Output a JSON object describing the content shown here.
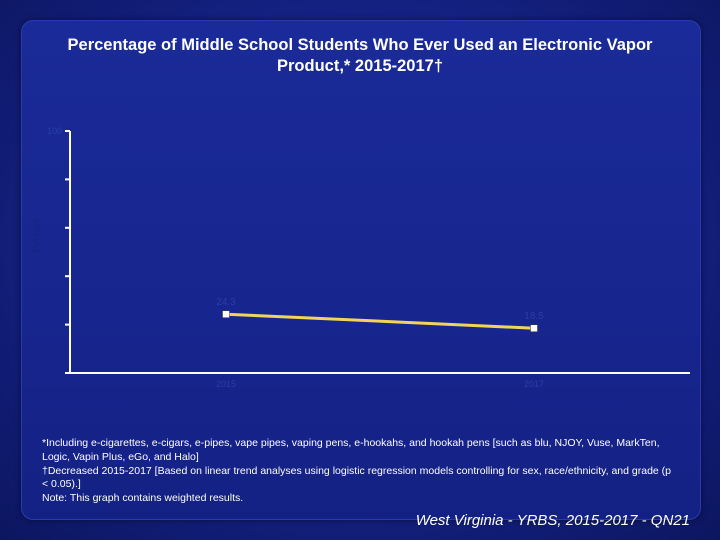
{
  "title": "Percentage of Middle School Students Who Ever Used an Electronic Vapor Product,* 2015-2017†",
  "chart_data": {
    "type": "line",
    "ylabel": "Percent",
    "ylim": [
      0,
      100
    ],
    "yticks": [
      0,
      20,
      40,
      60,
      80,
      100
    ],
    "ytick_labels": [
      "",
      "",
      "",
      "",
      "",
      "100"
    ],
    "categories": [
      "2015",
      "2017"
    ],
    "series": [
      {
        "values": [
          24.3,
          18.5
        ],
        "color": "#f2d45c"
      }
    ],
    "data_labels": [
      "24.3",
      "18.5"
    ]
  },
  "footnotes": [
    "*Including e-cigarettes, e-cigars, e-pipes, vape pipes, vaping pens, e-hookahs, and hookah pens [such as blu, NJOY, Vuse, MarkTen, Logic, Vapin Plus, eGo, and Halo]",
    "†Decreased 2015-2017 [Based on linear trend analyses using logistic regression models controlling for sex, race/ethnicity, and grade (p < 0.05).]",
    "Note: This graph contains weighted results."
  ],
  "credit": "West Virginia - YRBS, 2015-2017 - QN21",
  "colors": {
    "background": "#0e1a5e",
    "panel": "#17258e",
    "line": "#f2d45c",
    "axis": "#ffffff",
    "faint_text": "#2c3ca8"
  }
}
